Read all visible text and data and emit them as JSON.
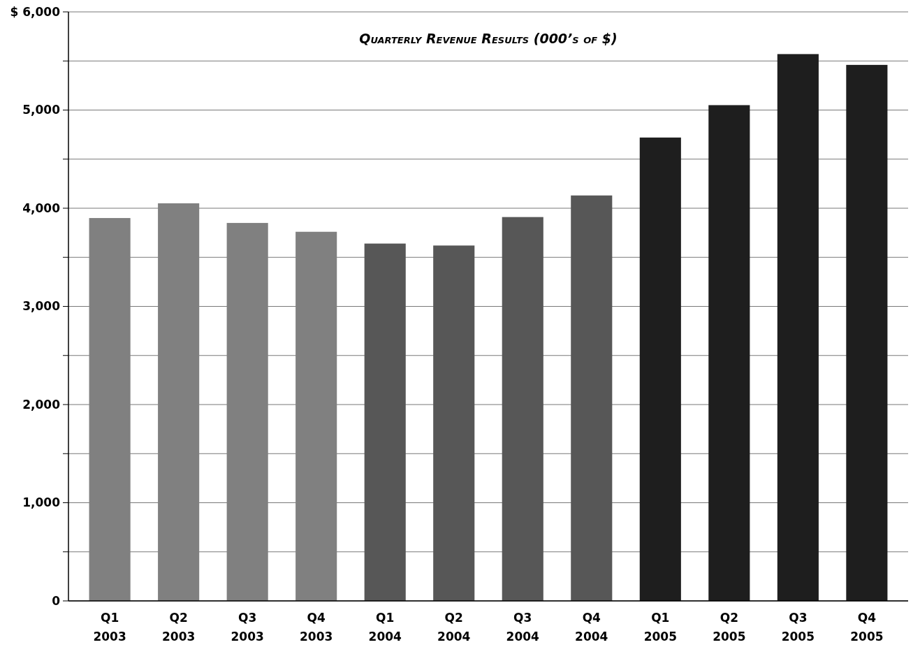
{
  "chart_data": {
    "type": "bar",
    "title": "Quarterly Revenue Results (000’s of $)",
    "categories": [
      "Q1\n2003",
      "Q2\n2003",
      "Q3\n2003",
      "Q4\n2003",
      "Q1\n2004",
      "Q2\n2004",
      "Q3\n2004",
      "Q4\n2004",
      "Q1\n2005",
      "Q2\n2005",
      "Q3\n2005",
      "Q4\n2005"
    ],
    "values": [
      3900,
      4050,
      3850,
      3760,
      3640,
      3620,
      3910,
      4130,
      4720,
      5050,
      5570,
      5460
    ],
    "colors": [
      "#808080",
      "#808080",
      "#808080",
      "#808080",
      "#575757",
      "#575757",
      "#575757",
      "#575757",
      "#1e1e1e",
      "#1e1e1e",
      "#1e1e1e",
      "#1e1e1e"
    ],
    "ylim": [
      0,
      6000
    ],
    "yticks": [
      0,
      {
        "value": 500,
        "label": null
      },
      {
        "value": 1000,
        "label": "1,000"
      },
      {
        "value": 1500,
        "label": null
      },
      {
        "value": 2000,
        "label": "2,000"
      },
      {
        "value": 2500,
        "label": null
      },
      {
        "value": 3000,
        "label": "3,000"
      },
      {
        "value": 3500,
        "label": null
      },
      {
        "value": 4000,
        "label": "4,000"
      },
      {
        "value": 4500,
        "label": null
      },
      {
        "value": 5000,
        "label": "5,000"
      },
      {
        "value": 5500,
        "label": null
      },
      {
        "value": 6000,
        "label": "$ 6,000"
      }
    ],
    "grid": "y"
  }
}
